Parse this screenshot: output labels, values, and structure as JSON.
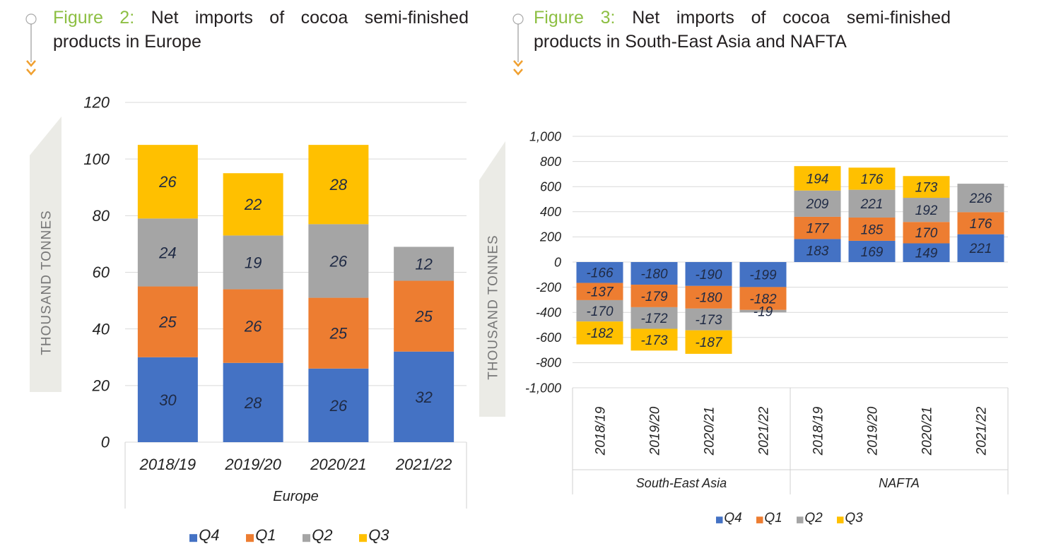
{
  "figures": [
    {
      "label": "Figure 2:",
      "title": "Net imports of cocoa semi-finished products in Europe"
    },
    {
      "label": "Figure 3:",
      "title": "Net imports of cocoa semi-finished products in South-East Asia and NAFTA"
    }
  ],
  "colors": {
    "Q4": "#4472c4",
    "Q1": "#ed7d31",
    "Q2": "#a5a5a5",
    "Q3": "#ffc000",
    "figure_label": "#8dbf43",
    "arrow": "#f0a030"
  },
  "chart_data": [
    {
      "type": "bar",
      "stacked": true,
      "ylabel": "THOUSAND TONNES",
      "ylim": [
        0,
        120
      ],
      "yticks": [
        "0",
        "20",
        "40",
        "60",
        "80",
        "100",
        "120"
      ],
      "grid": true,
      "legend": "bottom",
      "categories": [
        "2018/19",
        "2019/20",
        "2020/21",
        "2021/22"
      ],
      "groups": [
        {
          "label": "Europe",
          "count": 4
        }
      ],
      "series": [
        {
          "name": "Q4",
          "values": [
            30,
            28,
            26,
            32
          ]
        },
        {
          "name": "Q1",
          "values": [
            25,
            26,
            25,
            25
          ]
        },
        {
          "name": "Q2",
          "values": [
            24,
            19,
            26,
            12
          ]
        },
        {
          "name": "Q3",
          "values": [
            26,
            22,
            28,
            null
          ]
        }
      ]
    },
    {
      "type": "bar",
      "stacked": true,
      "ylabel": "THOUSAND TONNES",
      "ylim": [
        -1000,
        1000
      ],
      "yticks": [
        "-1,000",
        "-800",
        "-600",
        "-400",
        "-200",
        "0",
        "200",
        "400",
        "600",
        "800",
        "1,000"
      ],
      "grid": true,
      "legend": "bottom",
      "categories": [
        "2018/19",
        "2019/20",
        "2020/21",
        "2021/22",
        "2018/19",
        "2019/20",
        "2020/21",
        "2021/22"
      ],
      "groups": [
        {
          "label": "South-East Asia",
          "count": 4
        },
        {
          "label": "NAFTA",
          "count": 4
        }
      ],
      "series": [
        {
          "name": "Q4",
          "values": [
            -166,
            -180,
            -190,
            -199,
            183,
            169,
            149,
            221
          ]
        },
        {
          "name": "Q1",
          "values": [
            -137,
            -179,
            -180,
            -182,
            177,
            185,
            170,
            176
          ]
        },
        {
          "name": "Q2",
          "values": [
            -170,
            -172,
            -173,
            -19,
            209,
            221,
            192,
            226
          ]
        },
        {
          "name": "Q3",
          "values": [
            -182,
            -173,
            -187,
            null,
            194,
            176,
            173,
            null
          ]
        }
      ]
    }
  ]
}
